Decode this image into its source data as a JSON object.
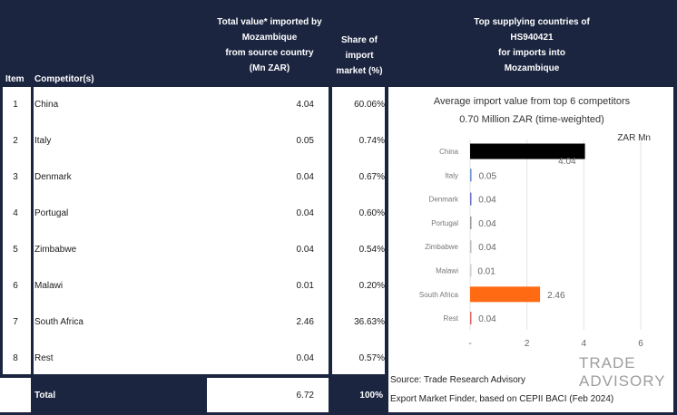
{
  "header": {
    "item": "Item",
    "competitor": "Competitor(s)",
    "total_lines": [
      "Total value* imported by",
      "Mozambique",
      "from source country",
      "(Mn ZAR)"
    ],
    "share_lines": [
      "Share of",
      "import",
      "market (%)"
    ],
    "top_lines": [
      "Top supplying countries of",
      "HS940421",
      "for imports into",
      "Mozambique"
    ]
  },
  "rows": [
    {
      "item": "1",
      "competitor": "China",
      "value": "4.04",
      "share": "60.06%"
    },
    {
      "item": "2",
      "competitor": "Italy",
      "value": "0.05",
      "share": "0.74%"
    },
    {
      "item": "3",
      "competitor": "Denmark",
      "value": "0.04",
      "share": "0.67%"
    },
    {
      "item": "4",
      "competitor": "Portugal",
      "value": "0.04",
      "share": "0.60%"
    },
    {
      "item": "5",
      "competitor": "Zimbabwe",
      "value": "0.04",
      "share": "0.54%"
    },
    {
      "item": "6",
      "competitor": "Malawi",
      "value": "0.01",
      "share": "0.20%"
    },
    {
      "item": "7",
      "competitor": "South Africa",
      "value": "2.46",
      "share": "36.63%"
    },
    {
      "item": "8",
      "competitor": "Rest",
      "value": "0.04",
      "share": "0.57%"
    }
  ],
  "total": {
    "label": "Total",
    "value": "6.72",
    "share": "100%"
  },
  "chart_data": {
    "type": "bar",
    "orientation": "horizontal",
    "title": "Average import value from top 6 competitors",
    "subtitle": "0.70 Million ZAR (time-weighted)",
    "unit_label": "ZAR Mn",
    "categories": [
      "China",
      "Italy",
      "Denmark",
      "Portugal",
      "Zimbabwe",
      "Malawi",
      "South Africa",
      "Rest"
    ],
    "values": [
      4.04,
      0.05,
      0.04,
      0.04,
      0.04,
      0.01,
      2.46,
      0.04
    ],
    "labels": [
      "4.04",
      "0.05",
      "0.04",
      "0.04",
      "0.04",
      "0.01",
      "2.46",
      "0.04"
    ],
    "colors": [
      "#000000",
      "#6a8fc7",
      "#6b6fc9",
      "#9a9a9a",
      "#bdbdbd",
      "#cfcfcf",
      "#ff6a13",
      "#e06666"
    ],
    "xlim": [
      0,
      6
    ],
    "xticks": [
      0,
      2,
      4,
      6
    ],
    "xtick_labels": [
      "-",
      "2",
      "4",
      "6"
    ],
    "grid": true
  },
  "source": {
    "line1": "Source: Trade Research Advisory",
    "line2": "Export Market Finder, based on CEPII BACI (Feb 2024)"
  },
  "logo": {
    "line1": "TRADE",
    "line2": "ADVISORY",
    "color": "#9e9e9e"
  }
}
